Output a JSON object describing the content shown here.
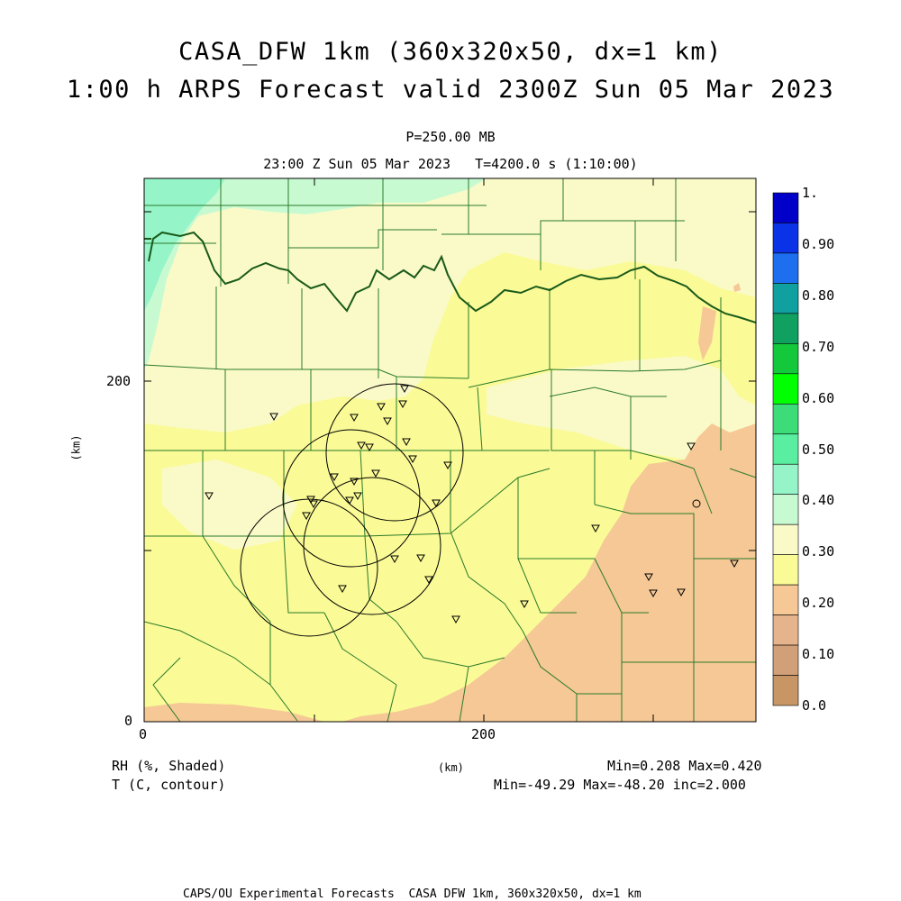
{
  "header": {
    "title_line1": "CASA_DFW 1km (360x320x50, dx=1 km)",
    "title_line2": "1:00 h ARPS Forecast valid 2300Z Sun 05 Mar 2023",
    "level": "P=250.00 MB",
    "time": "23:00 Z Sun 05 Mar 2023   T=4200.0 s (1:10:00)"
  },
  "axes": {
    "y_label": "(km)",
    "x_label": "(km)",
    "y_ticks": [
      "200",
      "0"
    ],
    "x_ticks": [
      "0",
      "200"
    ]
  },
  "legend": {
    "labels": [
      "1.",
      "0.90",
      "0.80",
      "0.70",
      "0.60",
      "0.50",
      "0.40",
      "0.30",
      "0.20",
      "0.10",
      "0.0"
    ],
    "colors": [
      "#0000c8",
      "#0a32e6",
      "#1e6ef0",
      "#10a0a0",
      "#10a060",
      "#14c83c",
      "#00ff00",
      "#3cdc78",
      "#5aeea0",
      "#96f5c8",
      "#c8fad2",
      "#fafac8",
      "#fafa96",
      "#f5c896",
      "#e6b48c",
      "#d2a078",
      "#c89664"
    ]
  },
  "footer": {
    "field1": "RH (%, Shaded)",
    "field2": "T (C, contour)",
    "axis_unit": "(km)",
    "stats1": "Min=0.208 Max=0.420",
    "stats2": "Min=-49.29 Max=-48.20 inc=2.000",
    "credit": "CAPS/OU Experimental Forecasts  CASA DFW 1km, 360x320x50, dx=1 km"
  },
  "map": {
    "colors": {
      "rh_030": "#fafac8",
      "rh_025": "#fafa96",
      "rh_020": "#f5c896",
      "rh_040": "#96f5c8",
      "rh_045": "#5aeea0",
      "county": "#2a7a2a",
      "state": "#1a5a1a",
      "radar_ring": "#000000"
    }
  }
}
